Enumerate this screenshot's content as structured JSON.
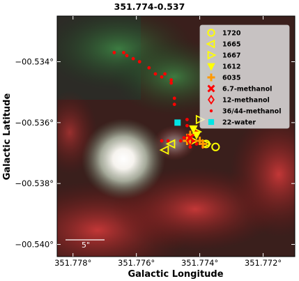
{
  "chart_data": {
    "type": "scatter",
    "title": "351.774-0.537",
    "xlabel": "Galactic Longitude",
    "ylabel": "Galactic Latitude",
    "xlim": [
      351.7785,
      351.771
    ],
    "ylim": [
      -0.5404,
      -0.5325
    ],
    "x_inverted": true,
    "x_ticks": [
      {
        "value": 351.778,
        "label": "351.778°"
      },
      {
        "value": 351.776,
        "label": "351.776°"
      },
      {
        "value": 351.774,
        "label": "351.774°"
      },
      {
        "value": 351.772,
        "label": "351.772°"
      }
    ],
    "y_ticks": [
      {
        "value": -0.534,
        "label": "−00.534°"
      },
      {
        "value": -0.536,
        "label": "−00.536°"
      },
      {
        "value": -0.538,
        "label": "−00.538°"
      },
      {
        "value": -0.54,
        "label": "−00.540°"
      }
    ],
    "scalebar_label": "5\"",
    "legend_position": "top-right",
    "series": [
      {
        "name": "1720",
        "marker": "circle-open",
        "color": "#ffff00",
        "points": [
          [
            351.7735,
            -0.5368
          ],
          [
            351.7738,
            -0.5367
          ]
        ]
      },
      {
        "name": "1665",
        "marker": "triangle-left-open",
        "color": "#ffff00",
        "points": [
          [
            351.7749,
            -0.5367
          ],
          [
            351.7751,
            -0.5369
          ]
        ]
      },
      {
        "name": "1667",
        "marker": "triangle-right-open",
        "color": "#ffff00",
        "points": [
          [
            351.774,
            -0.5359
          ],
          [
            351.7742,
            -0.5366
          ],
          [
            351.7741,
            -0.5363
          ],
          [
            351.7738,
            -0.5367
          ]
        ]
      },
      {
        "name": "1612",
        "marker": "triangle-down-filled",
        "color": "#ffff00",
        "points": [
          [
            351.7742,
            -0.5362
          ],
          [
            351.7741,
            -0.5364
          ]
        ]
      },
      {
        "name": "6035",
        "marker": "plus",
        "color": "#ff9900",
        "points": [
          [
            351.7744,
            -0.5366
          ],
          [
            351.7743,
            -0.5364
          ],
          [
            351.774,
            -0.5366
          ],
          [
            351.7739,
            -0.5367
          ]
        ]
      },
      {
        "name": "6.7-methanol",
        "marker": "x",
        "color": "#ff0000",
        "points": [
          [
            351.7743,
            -0.5365
          ]
        ]
      },
      {
        "name": "12-methanol",
        "marker": "diamond-open",
        "color": "#ff0000",
        "points": [
          [
            351.7743,
            -0.5366
          ]
        ]
      },
      {
        "name": "36/44-methanol",
        "marker": "dot",
        "color": "#ff0000",
        "points": [
          [
            351.7767,
            -0.5337
          ],
          [
            351.7764,
            -0.5337
          ],
          [
            351.7763,
            -0.5338
          ],
          [
            351.7761,
            -0.5339
          ],
          [
            351.7759,
            -0.534
          ],
          [
            351.7756,
            -0.5342
          ],
          [
            351.7754,
            -0.5344
          ],
          [
            351.7752,
            -0.5345
          ],
          [
            351.7751,
            -0.5344
          ],
          [
            351.7749,
            -0.5346
          ],
          [
            351.7749,
            -0.5347
          ],
          [
            351.7748,
            -0.5352
          ],
          [
            351.7748,
            -0.5354
          ],
          [
            351.7744,
            -0.5359
          ],
          [
            351.7742,
            -0.5362
          ],
          [
            351.7741,
            -0.5363
          ],
          [
            351.7743,
            -0.5364
          ],
          [
            351.7744,
            -0.5365
          ],
          [
            351.7745,
            -0.5365
          ],
          [
            351.7746,
            -0.5366
          ],
          [
            351.7742,
            -0.5366
          ],
          [
            351.7741,
            -0.5367
          ],
          [
            351.7739,
            -0.5368
          ],
          [
            351.7743,
            -0.5368
          ],
          [
            351.775,
            -0.5366
          ],
          [
            351.7752,
            -0.5366
          ],
          [
            351.7744,
            -0.5361
          ]
        ]
      },
      {
        "name": "22-water",
        "marker": "square-filled",
        "color": "#00e5e5",
        "points": [
          [
            351.7747,
            -0.536
          ]
        ]
      }
    ]
  }
}
